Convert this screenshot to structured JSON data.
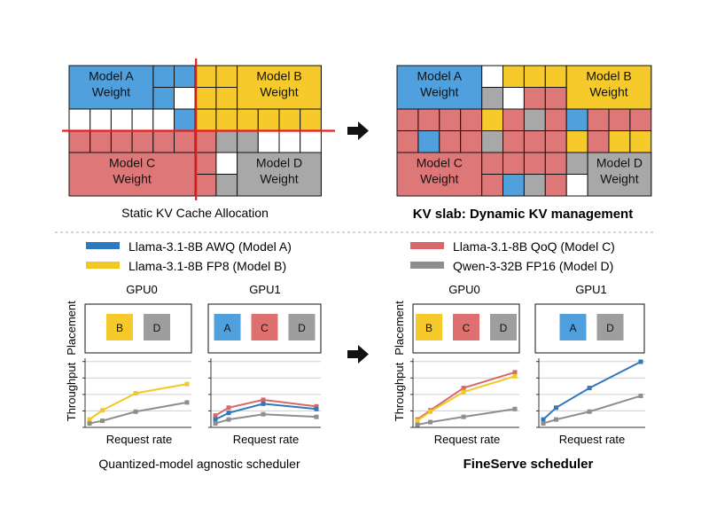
{
  "colors": {
    "model_a": "#2e78c0",
    "model_b": "#f2c824",
    "model_c": "#d86868",
    "model_d": "#9d9d9d",
    "kv_blue": "#4fa0dc",
    "kv_yellow": "#f5ca2a",
    "kv_red": "#de7878",
    "kv_gray": "#a8a8a8",
    "block_a": "#4fa0dc",
    "block_b": "#f5ca2a",
    "block_c": "#de7070",
    "block_d": "#9e9e9e",
    "red_line": "#e02020",
    "grid_line": "#111111"
  },
  "top_left": {
    "model_a_weight": [
      "Model A",
      "Weight"
    ],
    "model_b_weight": [
      "Model B",
      "Weight"
    ],
    "model_c_weight": [
      "Model C",
      "Weight"
    ],
    "model_d_weight": [
      "Model D",
      "Weight"
    ],
    "caption": "Static KV Cache Allocation"
  },
  "top_right": {
    "model_a_weight": [
      "Model A",
      "Weight"
    ],
    "model_b_weight": [
      "Model B",
      "Weight"
    ],
    "model_c_weight": [
      "Model C",
      "Weight"
    ],
    "model_d_weight": [
      "Model D",
      "Weight"
    ],
    "caption": "KV slab: Dynamic KV management"
  },
  "legend": [
    {
      "label": "Llama-3.1-8B AWQ (Model A)",
      "color": "#2e78c0"
    },
    {
      "label": "Llama-3.1-8B FP8 (Model B)",
      "color": "#f2c824"
    },
    {
      "label": "Llama-3.1-8B QoQ (Model C)",
      "color": "#d86868"
    },
    {
      "label": "Qwen-3-32B FP16 (Model D)",
      "color": "#8e8e8e"
    }
  ],
  "bottom_left": {
    "gpu0": "GPU0",
    "gpu1": "GPU1",
    "placement_label": "Placement",
    "throughput_label": "Throughput",
    "xlabel": "Request rate",
    "caption": "Quantized-model agnostic scheduler",
    "gpu0_blocks": [
      "B",
      "D"
    ],
    "gpu1_blocks": [
      "A",
      "C",
      "D"
    ]
  },
  "bottom_right": {
    "gpu0": "GPU0",
    "gpu1": "GPU1",
    "placement_label": "Placement",
    "throughput_label": "Throughput",
    "xlabel": "Request rate",
    "caption": "FineServe scheduler",
    "gpu0_blocks": [
      "B",
      "C",
      "D"
    ],
    "gpu1_blocks": [
      "A",
      "D"
    ]
  },
  "chart_data": [
    {
      "type": "line",
      "panel": "Quantized-model agnostic scheduler / GPU0",
      "xlabel": "Request rate",
      "ylabel": "Throughput",
      "x": [
        1,
        2,
        3,
        4,
        5
      ],
      "ylim": [
        0,
        5
      ],
      "grid": true,
      "series": [
        {
          "name": "B",
          "color": "#f2c824",
          "points": [
            [
              1,
              0.6
            ],
            [
              1.5,
              1.3
            ],
            [
              2.8,
              2.6
            ],
            [
              4.8,
              3.3
            ]
          ]
        },
        {
          "name": "D",
          "color": "#8e8e8e",
          "points": [
            [
              1,
              0.3
            ],
            [
              1.5,
              0.5
            ],
            [
              2.8,
              1.2
            ],
            [
              4.8,
              1.9
            ]
          ]
        }
      ]
    },
    {
      "type": "line",
      "panel": "Quantized-model agnostic scheduler / GPU1",
      "xlabel": "Request rate",
      "ylabel": "Throughput",
      "ylim": [
        0,
        5
      ],
      "grid": true,
      "series": [
        {
          "name": "C",
          "color": "#d86868",
          "points": [
            [
              1,
              0.9
            ],
            [
              1.5,
              1.5
            ],
            [
              2.8,
              2.1
            ],
            [
              4.8,
              1.6
            ]
          ]
        },
        {
          "name": "A",
          "color": "#2e78c0",
          "points": [
            [
              1,
              0.6
            ],
            [
              1.5,
              1.1
            ],
            [
              2.8,
              1.8
            ],
            [
              4.8,
              1.4
            ]
          ]
        },
        {
          "name": "D",
          "color": "#8e8e8e",
          "points": [
            [
              1,
              0.3
            ],
            [
              1.5,
              0.6
            ],
            [
              2.8,
              1.0
            ],
            [
              4.8,
              0.8
            ]
          ]
        }
      ]
    },
    {
      "type": "line",
      "panel": "FineServe scheduler / GPU0",
      "xlabel": "Request rate",
      "ylabel": "Throughput",
      "ylim": [
        0,
        5
      ],
      "grid": true,
      "series": [
        {
          "name": "C",
          "color": "#d86868",
          "points": [
            [
              1,
              0.6
            ],
            [
              1.5,
              1.3
            ],
            [
              2.8,
              3.0
            ],
            [
              4.8,
              4.2
            ]
          ]
        },
        {
          "name": "B",
          "color": "#f2c824",
          "points": [
            [
              1,
              0.5
            ],
            [
              1.5,
              1.2
            ],
            [
              2.8,
              2.7
            ],
            [
              4.8,
              3.9
            ]
          ]
        },
        {
          "name": "D",
          "color": "#8e8e8e",
          "points": [
            [
              1,
              0.2
            ],
            [
              1.5,
              0.4
            ],
            [
              2.8,
              0.8
            ],
            [
              4.8,
              1.4
            ]
          ]
        }
      ]
    },
    {
      "type": "line",
      "panel": "FineServe scheduler / GPU1",
      "xlabel": "Request rate",
      "ylabel": "Throughput",
      "ylim": [
        0,
        5
      ],
      "grid": true,
      "series": [
        {
          "name": "A",
          "color": "#2e78c0",
          "points": [
            [
              1,
              0.6
            ],
            [
              1.5,
              1.5
            ],
            [
              2.8,
              3.0
            ],
            [
              4.8,
              5.0
            ]
          ]
        },
        {
          "name": "D",
          "color": "#8e8e8e",
          "points": [
            [
              1,
              0.3
            ],
            [
              1.5,
              0.6
            ],
            [
              2.8,
              1.2
            ],
            [
              4.8,
              2.4
            ]
          ]
        }
      ]
    }
  ]
}
